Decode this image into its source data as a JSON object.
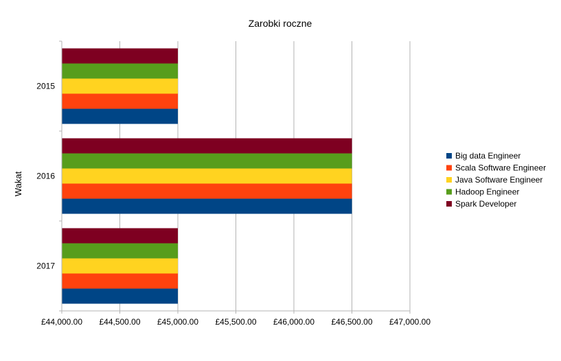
{
  "chart_data": {
    "type": "bar",
    "orientation": "horizontal",
    "title": "Zarobki roczne",
    "xlabel": "",
    "ylabel": "Wakat",
    "categories": [
      "2015",
      "2016",
      "2017"
    ],
    "xlim": [
      44000,
      47000
    ],
    "x_ticks": [
      "£44,000.00",
      "£44,500.00",
      "£45,000.00",
      "£45,500.00",
      "£46,000.00",
      "£46,500.00",
      "£47,000.00"
    ],
    "x_tick_values": [
      44000,
      44500,
      45000,
      45500,
      46000,
      46500,
      47000
    ],
    "grid": true,
    "legend_position": "right",
    "series": [
      {
        "name": "Big data Engineer",
        "color": "#004586",
        "values": [
          45000,
          46500,
          45000
        ]
      },
      {
        "name": "Scala Software Engineer",
        "color": "#ff420e",
        "values": [
          45000,
          46500,
          45000
        ]
      },
      {
        "name": "Java Software Engineer",
        "color": "#ffd320",
        "values": [
          45000,
          46500,
          45000
        ]
      },
      {
        "name": "Hadoop Engineer",
        "color": "#579d1c",
        "values": [
          45000,
          46500,
          45000
        ]
      },
      {
        "name": "Spark Developer",
        "color": "#7e0021",
        "values": [
          45000,
          46500,
          45000
        ]
      }
    ]
  }
}
